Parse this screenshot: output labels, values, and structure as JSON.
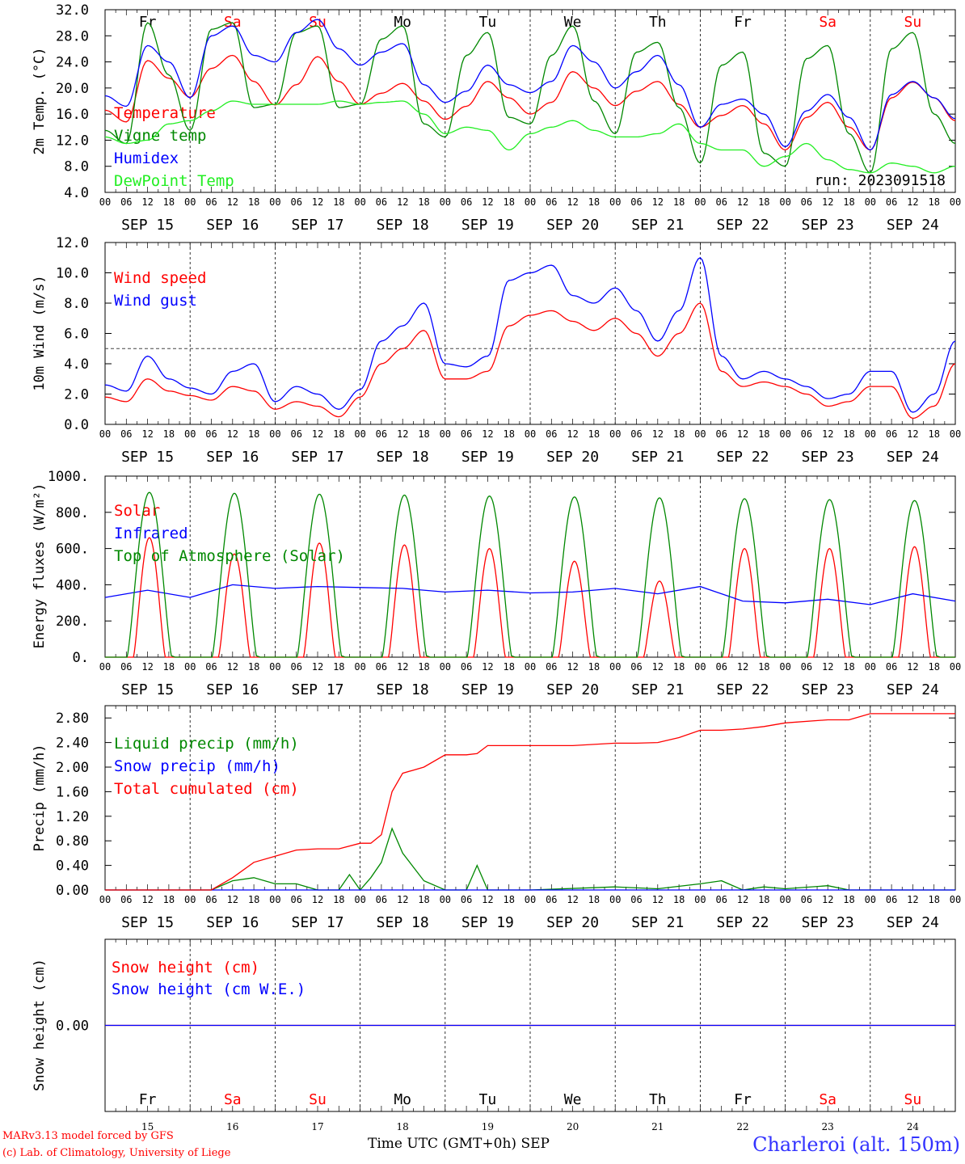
{
  "chart_data": [
    {
      "type": "line",
      "ylabel": "2m Temp. (°C)",
      "ylim": [
        4,
        32
      ],
      "yticks": [
        "4.0",
        "8.0",
        "12.0",
        "16.0",
        "20.0",
        "24.0",
        "28.0",
        "32.0"
      ],
      "x_hours": [
        0,
        6,
        12,
        18,
        24,
        30,
        36,
        42,
        48,
        54,
        60,
        66,
        72,
        78,
        84,
        90,
        96,
        102,
        108,
        114,
        120,
        126,
        132,
        138,
        144,
        150,
        156,
        162,
        168,
        174,
        180,
        186,
        192,
        198,
        204,
        210,
        216,
        222,
        228,
        234,
        240
      ],
      "series": [
        {
          "name": "Temperature",
          "color": "#ff0000",
          "values": [
            16.6,
            14.8,
            24.2,
            21.5,
            18.6,
            23.0,
            25.0,
            21.0,
            17.4,
            20.5,
            24.8,
            21.0,
            17.5,
            19.2,
            20.7,
            18.0,
            15.2,
            17.2,
            21.0,
            18.5,
            16.0,
            17.8,
            22.5,
            20.0,
            17.3,
            19.5,
            21.0,
            17.5,
            14.0,
            15.8,
            17.3,
            14.5,
            10.5,
            15.5,
            17.8,
            14.0,
            10.5,
            18.5,
            20.9,
            18.5,
            15.0
          ]
        },
        {
          "name": "Vigne temp",
          "color": "#008800",
          "values": [
            13.5,
            11.5,
            30.0,
            22.0,
            13.5,
            29.0,
            30.0,
            17.0,
            17.5,
            28.5,
            29.5,
            17.0,
            17.5,
            27.5,
            29.5,
            14.5,
            12.5,
            25.0,
            28.5,
            15.5,
            14.5,
            25.0,
            29.5,
            18.0,
            13.0,
            25.5,
            27.0,
            17.0,
            8.5,
            23.5,
            25.5,
            10.0,
            8.0,
            24.5,
            26.5,
            13.0,
            7.0,
            26.0,
            28.5,
            16.0,
            11.5
          ]
        },
        {
          "name": "Humidex",
          "color": "#0000ff",
          "values": [
            18.8,
            17.2,
            26.5,
            24.0,
            18.5,
            28.0,
            29.5,
            25.0,
            24.0,
            28.5,
            30.5,
            26.0,
            23.5,
            25.5,
            26.8,
            20.5,
            17.8,
            19.5,
            23.5,
            20.5,
            19.3,
            21.0,
            26.5,
            24.0,
            20.0,
            22.5,
            25.0,
            20.5,
            14.0,
            17.5,
            18.3,
            16.0,
            11.0,
            16.5,
            19.0,
            15.5,
            10.5,
            19.0,
            21.0,
            18.5,
            15.3
          ]
        },
        {
          "name": "DewPoint Temp",
          "color": "#22ee22",
          "values": [
            12.5,
            11.5,
            12.0,
            14.5,
            15.0,
            16.5,
            18.0,
            17.5,
            17.5,
            17.5,
            17.5,
            18.0,
            17.5,
            17.8,
            18.0,
            16.0,
            13.0,
            14.0,
            13.5,
            10.5,
            13.0,
            14.0,
            15.0,
            13.5,
            12.5,
            12.5,
            13.0,
            14.5,
            11.5,
            10.5,
            10.5,
            8.0,
            9.5,
            11.5,
            9.0,
            7.5,
            7.0,
            8.5,
            8.0,
            7.0,
            8.0
          ]
        }
      ],
      "annotation": "run: 2023091518"
    },
    {
      "type": "line",
      "ylabel": "10m Wind (m/s)",
      "ylim": [
        0,
        12
      ],
      "yticks": [
        "0.0",
        "2.0",
        "4.0",
        "6.0",
        "8.0",
        "10.0",
        "12.0"
      ],
      "x_hours": [
        0,
        6,
        12,
        18,
        24,
        30,
        36,
        42,
        48,
        54,
        60,
        66,
        72,
        78,
        84,
        90,
        96,
        102,
        108,
        114,
        120,
        126,
        132,
        138,
        144,
        150,
        156,
        162,
        168,
        174,
        180,
        186,
        192,
        198,
        204,
        210,
        216,
        222,
        228,
        234,
        240
      ],
      "series": [
        {
          "name": "Wind speed",
          "color": "#ff0000",
          "values": [
            1.8,
            1.5,
            3.0,
            2.2,
            1.9,
            1.6,
            2.5,
            2.2,
            1.0,
            1.5,
            1.2,
            0.5,
            1.8,
            4.0,
            5.0,
            6.2,
            3.0,
            3.0,
            3.5,
            6.5,
            7.2,
            7.5,
            6.8,
            6.2,
            7.0,
            6.0,
            4.5,
            6.0,
            8.0,
            3.5,
            2.5,
            2.8,
            2.5,
            2.0,
            1.2,
            1.5,
            2.5,
            2.5,
            0.4,
            1.2,
            4.0
          ]
        },
        {
          "name": "Wind gust",
          "color": "#0000ff",
          "values": [
            2.6,
            2.2,
            4.5,
            3.0,
            2.4,
            2.0,
            3.5,
            4.0,
            1.5,
            2.5,
            2.0,
            1.0,
            2.3,
            5.5,
            6.5,
            8.0,
            4.0,
            3.8,
            4.5,
            9.5,
            10.0,
            10.5,
            8.5,
            8.0,
            9.0,
            7.5,
            5.5,
            7.5,
            11.0,
            4.5,
            3.0,
            3.5,
            3.0,
            2.5,
            1.7,
            2.0,
            3.5,
            3.5,
            0.8,
            2.0,
            5.5
          ]
        }
      ],
      "reference_line": 5.0
    },
    {
      "type": "line",
      "ylabel": "Energy fluxes (W/m²)",
      "ylim": [
        0,
        1000
      ],
      "yticks": [
        "0.",
        "200.",
        "400.",
        "600.",
        "800.",
        "1000."
      ],
      "series": [
        {
          "name": "Solar",
          "color": "#ff0000",
          "daily_peaks": [
            660,
            570,
            630,
            620,
            600,
            530,
            420,
            600,
            600,
            610
          ]
        },
        {
          "name": "Infrared",
          "color": "#0000ff",
          "x_hours": [
            0,
            12,
            24,
            36,
            48,
            60,
            72,
            84,
            96,
            108,
            120,
            132,
            144,
            156,
            168,
            180,
            192,
            204,
            216,
            228,
            240
          ],
          "values": [
            330,
            370,
            330,
            400,
            380,
            390,
            385,
            380,
            360,
            370,
            355,
            360,
            380,
            350,
            390,
            310,
            300,
            320,
            290,
            350,
            310
          ]
        },
        {
          "name": "Top of Atmosphere (Solar)",
          "color": "#008800",
          "daily_peaks": [
            910,
            905,
            900,
            895,
            890,
            885,
            880,
            875,
            870,
            865
          ]
        }
      ]
    },
    {
      "type": "line",
      "ylabel": "Precip (mm/h)",
      "ylim": [
        0,
        3.0
      ],
      "yticks": [
        "0.00",
        "0.40",
        "0.80",
        "1.20",
        "1.60",
        "2.00",
        "2.40",
        "2.80"
      ],
      "series": [
        {
          "name": "Liquid precip (mm/h)",
          "color": "#008800",
          "x_hours": [
            0,
            30,
            36,
            42,
            48,
            54,
            60,
            66,
            69,
            72,
            75,
            78,
            81,
            84,
            90,
            96,
            102,
            105,
            108,
            114,
            120,
            144,
            156,
            168,
            174,
            180,
            186,
            192,
            204,
            210,
            216,
            240
          ],
          "values": [
            0,
            0,
            0.15,
            0.2,
            0.1,
            0.1,
            0,
            0,
            0.25,
            0,
            0.2,
            0.45,
            1.0,
            0.6,
            0.15,
            0,
            0,
            0.4,
            0,
            0,
            0,
            0.05,
            0.02,
            0.1,
            0.15,
            0,
            0.05,
            0.02,
            0.07,
            0,
            0,
            0
          ]
        },
        {
          "name": "Snow precip (mm/h)",
          "color": "#0000ff",
          "x_hours": [
            0,
            240
          ],
          "values": [
            0,
            0
          ]
        },
        {
          "name": "Total cumulated (cm)",
          "color": "#ff0000",
          "x_hours": [
            0,
            30,
            36,
            42,
            48,
            54,
            60,
            66,
            72,
            75,
            78,
            81,
            84,
            90,
            96,
            102,
            105,
            108,
            132,
            144,
            150,
            156,
            162,
            168,
            174,
            180,
            186,
            192,
            204,
            210,
            216,
            240
          ],
          "values": [
            0,
            0,
            0.2,
            0.45,
            0.55,
            0.65,
            0.67,
            0.67,
            0.76,
            0.76,
            0.9,
            1.6,
            1.9,
            2.0,
            2.2,
            2.2,
            2.22,
            2.35,
            2.35,
            2.39,
            2.39,
            2.4,
            2.48,
            2.6,
            2.6,
            2.62,
            2.66,
            2.72,
            2.77,
            2.77,
            2.87,
            2.87
          ]
        }
      ]
    },
    {
      "type": "line",
      "ylabel": "Snow height (cm)",
      "yticks": [
        "0.00"
      ],
      "series": [
        {
          "name": "Snow height (cm)",
          "color": "#ff0000",
          "x_hours": [
            0,
            240
          ],
          "values": [
            0,
            0
          ]
        },
        {
          "name": "Snow height (cm W.E.)",
          "color": "#0000ff",
          "x_hours": [
            0,
            240
          ],
          "values": [
            0,
            0
          ]
        }
      ]
    }
  ],
  "axis": {
    "hour_ticks": [
      "00",
      "06",
      "12",
      "18"
    ],
    "end_hour": "00",
    "date_labels": [
      "SEP 15",
      "SEP 16",
      "SEP 17",
      "SEP 18",
      "SEP 19",
      "SEP 20",
      "SEP 21",
      "SEP 22",
      "SEP 23",
      "SEP 24"
    ],
    "weekday_labels": [
      "Fr",
      "Sa",
      "Su",
      "Mo",
      "Tu",
      "We",
      "Th",
      "Fr",
      "Sa",
      "Su"
    ],
    "weekday_colors": [
      "#000000",
      "#ff0000",
      "#ff0000",
      "#000000",
      "#000000",
      "#000000",
      "#000000",
      "#000000",
      "#ff0000",
      "#ff0000"
    ],
    "day_numbers": [
      "15",
      "16",
      "17",
      "18",
      "19",
      "20",
      "21",
      "22",
      "23",
      "24"
    ],
    "month": "SEP",
    "xlabel": "Time UTC (GMT+0h)"
  },
  "footer": {
    "model_line": "MARv3.13 model forced by GFS",
    "credit_line": "(c) Lab. of Climatology, University of Liege",
    "station": "Charleroi (alt. 150m)"
  }
}
